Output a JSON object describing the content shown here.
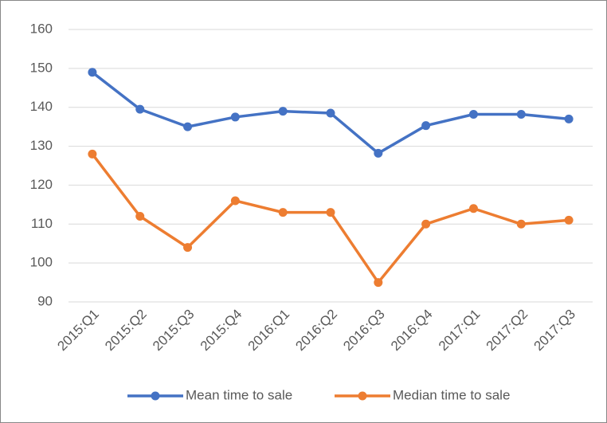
{
  "chart_data": {
    "type": "line",
    "categories": [
      "2015:Q1",
      "2015:Q2",
      "2015:Q3",
      "2015:Q4",
      "2016:Q1",
      "2016:Q2",
      "2016:Q3",
      "2016:Q4",
      "2017:Q1",
      "2017:Q2",
      "2017:Q3"
    ],
    "series": [
      {
        "name": "Mean time to sale",
        "color": "#4472c4",
        "values": [
          149,
          139.5,
          135,
          137.5,
          139,
          138.5,
          128.2,
          135.3,
          138.2,
          138.2,
          137
        ]
      },
      {
        "name": "Median time to sale",
        "color": "#ed7d31",
        "values": [
          128,
          112,
          104,
          116,
          113,
          113,
          95,
          110,
          114,
          110,
          111
        ]
      }
    ],
    "ylim": [
      90,
      160
    ],
    "yticks": [
      90,
      100,
      110,
      120,
      130,
      140,
      150,
      160
    ],
    "grid": true,
    "legend": "bottom"
  }
}
